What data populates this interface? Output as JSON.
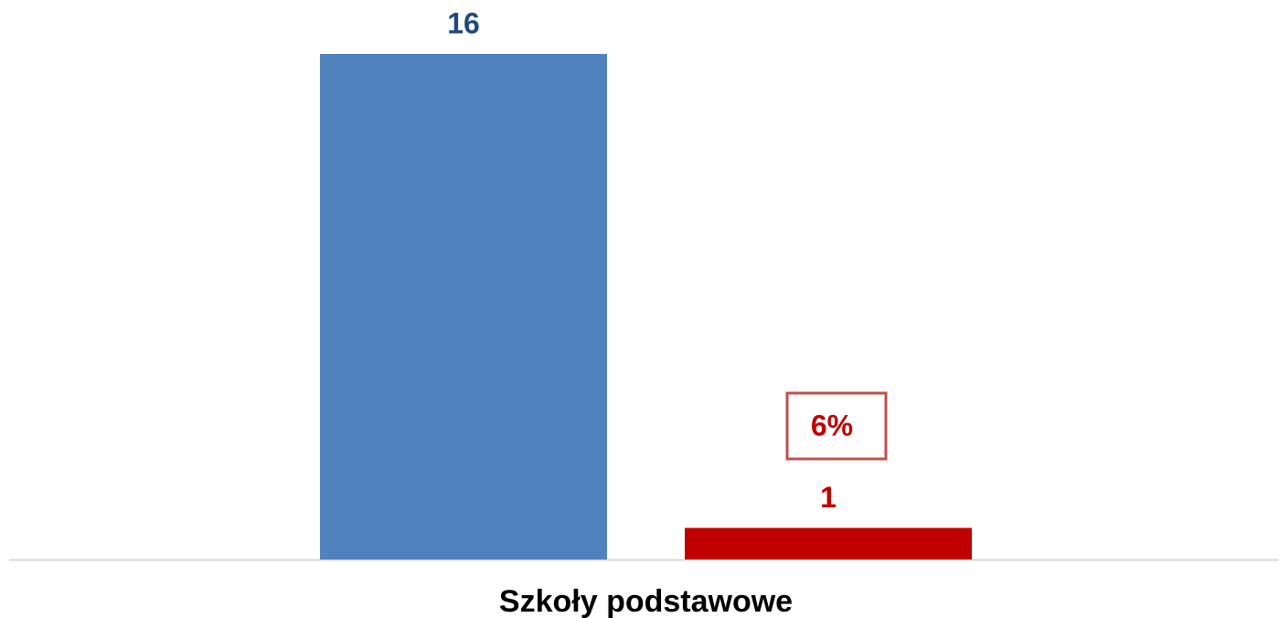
{
  "chart_data": {
    "type": "bar",
    "categories": [
      "Szkoły podstawowe"
    ],
    "series": [
      {
        "color": "#4f81bd",
        "label_color": "#1f497d",
        "values": [
          16
        ]
      },
      {
        "color": "#c00000",
        "label_color": "#c00000",
        "values": [
          1
        ]
      }
    ],
    "annotation": "6%",
    "ylim": [
      0,
      16
    ]
  }
}
